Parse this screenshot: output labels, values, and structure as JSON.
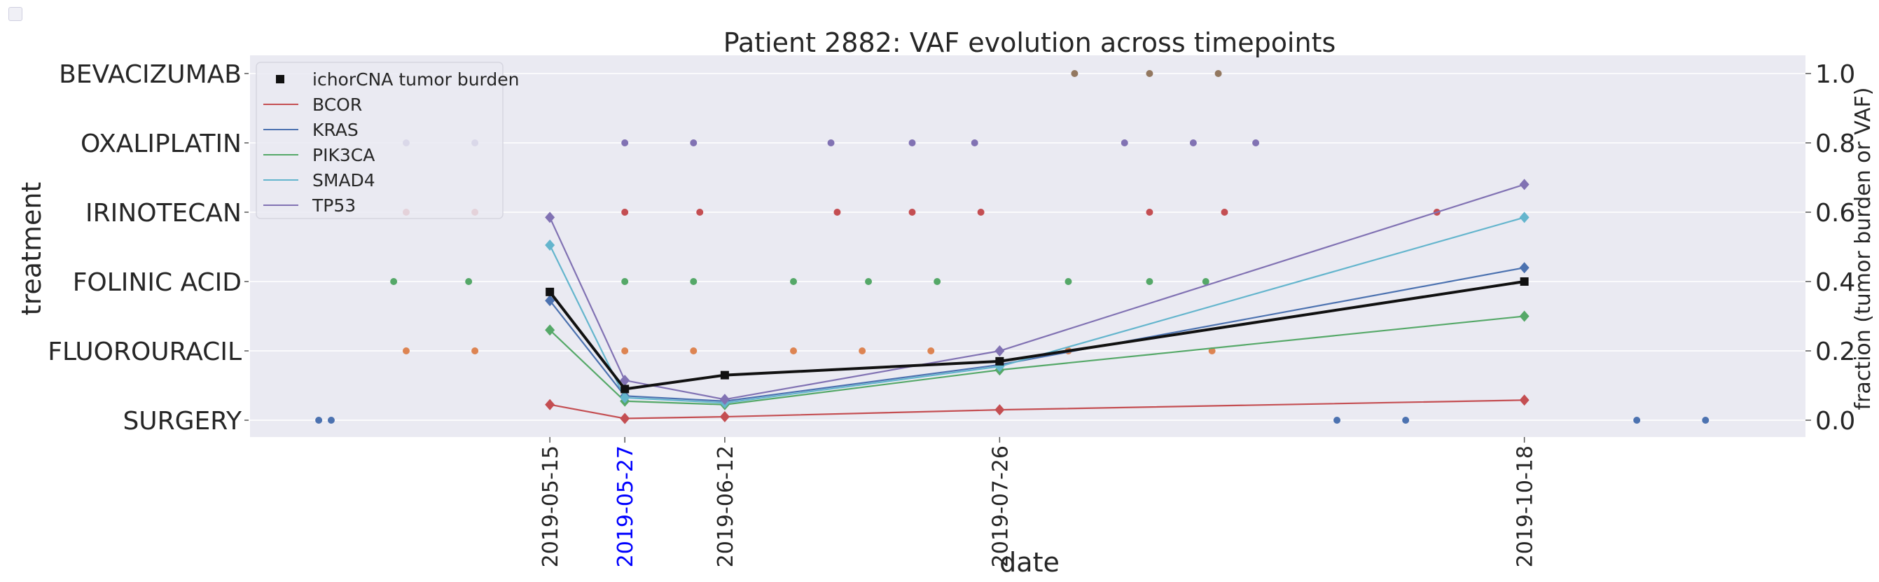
{
  "chart_data": {
    "type": "line",
    "title": "Patient 2882: VAF evolution across timepoints",
    "xlabel": "date",
    "ylabel_left": "treatment",
    "ylabel_right": "fraction (tumor burden or VAF)",
    "right_ylim": [
      0,
      1.0
    ],
    "right_yticks": [
      "0.0",
      "0.2",
      "0.4",
      "0.6",
      "0.8",
      "1.0"
    ],
    "xlim": [
      "2019-03-28",
      "2019-12-02"
    ],
    "treatments": [
      "SURGERY",
      "FLUOROURACIL",
      "FOLINIC ACID",
      "IRINOTECAN",
      "OXALIPLATIN",
      "BEVACIZUMAB"
    ],
    "timepoints": [
      {
        "label": "2019-05-15",
        "date": "2019-05-15",
        "highlight": false
      },
      {
        "label": "2019-05-27",
        "date": "2019-05-27",
        "highlight": true
      },
      {
        "label": "2019-06-12",
        "date": "2019-06-12",
        "highlight": false
      },
      {
        "label": "2019-07-26",
        "date": "2019-07-26",
        "highlight": false
      },
      {
        "label": "2019-10-18",
        "date": "2019-10-18",
        "highlight": false
      }
    ],
    "treatment_events": [
      {
        "treatment": "SURGERY",
        "color": "#4c72b0",
        "dates": [
          "2019-04-08",
          "2019-04-10",
          "2019-09-18",
          "2019-09-29",
          "2019-11-05",
          "2019-11-16"
        ]
      },
      {
        "treatment": "FLUOROURACIL",
        "color": "#dd8452",
        "dates": [
          "2019-04-22",
          "2019-05-03",
          "2019-05-27",
          "2019-06-07",
          "2019-06-23",
          "2019-07-04",
          "2019-07-15",
          "2019-08-06",
          "2019-08-29"
        ]
      },
      {
        "treatment": "FOLINIC ACID",
        "color": "#55a868",
        "dates": [
          "2019-04-20",
          "2019-05-02",
          "2019-05-27",
          "2019-06-07",
          "2019-06-23",
          "2019-07-05",
          "2019-07-16",
          "2019-08-06",
          "2019-08-19",
          "2019-08-28"
        ]
      },
      {
        "treatment": "IRINOTECAN",
        "color": "#c44e52",
        "dates": [
          "2019-04-22",
          "2019-05-03",
          "2019-05-27",
          "2019-06-08",
          "2019-06-30",
          "2019-07-12",
          "2019-07-23",
          "2019-08-19",
          "2019-08-31",
          "2019-10-04"
        ]
      },
      {
        "treatment": "OXALIPLATIN",
        "color": "#8172b3",
        "dates": [
          "2019-04-22",
          "2019-05-03",
          "2019-05-27",
          "2019-06-07",
          "2019-06-29",
          "2019-07-12",
          "2019-07-22",
          "2019-08-15",
          "2019-08-26",
          "2019-09-05"
        ]
      },
      {
        "treatment": "BEVACIZUMAB",
        "color": "#937860",
        "dates": [
          "2019-08-07",
          "2019-08-19",
          "2019-08-30"
        ]
      }
    ],
    "series": [
      {
        "name": "ichorCNA tumor burden",
        "color": "#111111",
        "marker": "square",
        "values": [
          0.37,
          0.09,
          0.13,
          0.17,
          0.4
        ]
      },
      {
        "name": "BCOR",
        "color": "#c44e52",
        "marker": "diamond",
        "values": [
          0.045,
          0.005,
          0.01,
          0.03,
          0.058
        ]
      },
      {
        "name": "KRAS",
        "color": "#4c72b0",
        "marker": "diamond",
        "values": [
          0.345,
          0.07,
          0.055,
          0.16,
          0.44
        ]
      },
      {
        "name": "PIK3CA",
        "color": "#55a868",
        "marker": "diamond",
        "values": [
          0.26,
          0.055,
          0.045,
          0.145,
          0.3
        ]
      },
      {
        "name": "SMAD4",
        "color": "#64b5cd",
        "marker": "diamond",
        "values": [
          0.505,
          0.065,
          0.05,
          0.155,
          0.585
        ]
      },
      {
        "name": "TP53",
        "color": "#8172b3",
        "marker": "diamond",
        "values": [
          0.585,
          0.115,
          0.06,
          0.2,
          0.68
        ]
      }
    ]
  }
}
